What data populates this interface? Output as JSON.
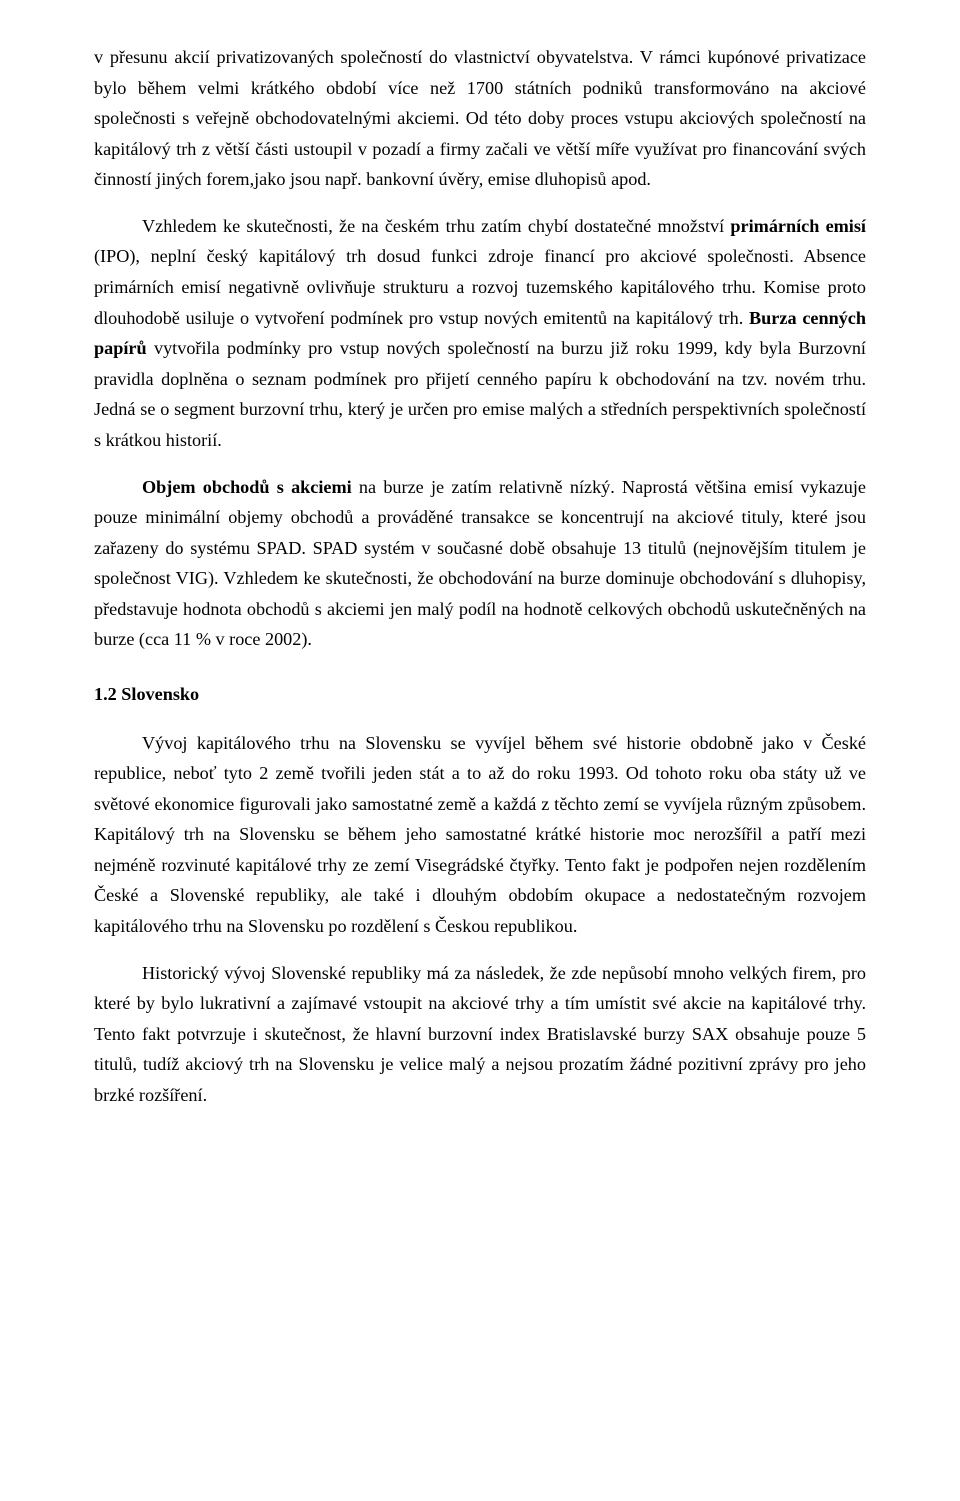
{
  "paragraphs": {
    "p1_a": "v přesunu akcií privatizovaných společností do vlastnictví obyvatelstva. V rámci kupónové privatizace bylo během velmi krátkého období více než 1700 státních podniků transformováno na akciové společnosti s veřejně obchodovatelnými akciemi. Od této doby proces vstupu akciových společností na kapitálový trh z větší části ustoupil v pozadí a firmy začali ve větší míře využívat pro financování svých činností jiných forem,jako jsou např. bankovní úvěry, emise dluhopisů apod.",
    "p2_a": "Vzhledem ke skutečnosti, že na českém trhu zatím chybí dostatečné množství ",
    "p2_b": "primárních emisí",
    "p2_c": " (IPO), neplní český kapitálový trh dosud funkci zdroje financí pro akciové společnosti. Absence primárních emisí negativně ovlivňuje strukturu a rozvoj tuzemského kapitálového trhu. Komise proto dlouhodobě usiluje o vytvoření podmínek pro vstup nových emitentů na kapitálový trh. ",
    "p2_d": "Burza cenných papírů",
    "p2_e": " vytvořila podmínky pro vstup nových společností na burzu již roku 1999, kdy byla Burzovní pravidla doplněna o seznam podmínek pro přijetí cenného papíru k obchodování na tzv. novém trhu. Jedná se o segment burzovní trhu, který je určen pro emise malých a středních perspektivních společností s krátkou historií.",
    "p3_a": "Objem obchodů s akciemi",
    "p3_b": " na burze je zatím relativně nízký. Naprostá většina emisí vykazuje pouze minimální objemy obchodů a prováděné transakce se koncentrují na akciové tituly, které jsou zařazeny do systému SPAD. SPAD systém v současné době obsahuje 13 titulů (nejnovějším titulem je společnost VIG). Vzhledem ke skutečnosti, že obchodování na burze dominuje obchodování s dluhopisy, představuje hodnota obchodů s akciemi jen malý podíl na hodnotě celkových obchodů uskutečněných na burze (cca 11 % v roce 2002).",
    "h1": "1.2 Slovensko",
    "p4": "Vývoj kapitálového trhu na Slovensku se vyvíjel během své historie obdobně jako v České republice, neboť tyto 2 země tvořili jeden stát a to až do roku 1993. Od tohoto roku oba státy už ve světové ekonomice figurovali jako samostatné země a každá z těchto zemí se vyvíjela různým způsobem. Kapitálový trh na Slovensku se během jeho samostatné krátké historie moc nerozšířil a patří mezi nejméně rozvinuté kapitálové trhy ze zemí Visegrádské čtyřky. Tento fakt je podpořen nejen rozdělením České a Slovenské republiky, ale také i dlouhým obdobím okupace a nedostatečným rozvojem kapitálového trhu na Slovensku po rozdělení s Českou republikou.",
    "p5": "Historický vývoj Slovenské republiky má za následek, že zde nepůsobí mnoho velkých firem, pro které by bylo lukrativní a zajímavé vstoupit na akciové trhy a tím umístit své akcie na kapitálové trhy. Tento fakt potvrzuje i skutečnost, že hlavní burzovní index Bratislavské burzy SAX obsahuje pouze 5 titulů, tudíž akciový trh na Slovensku je velice malý a nejsou prozatím žádné pozitivní zprávy pro jeho brzké rozšíření."
  }
}
